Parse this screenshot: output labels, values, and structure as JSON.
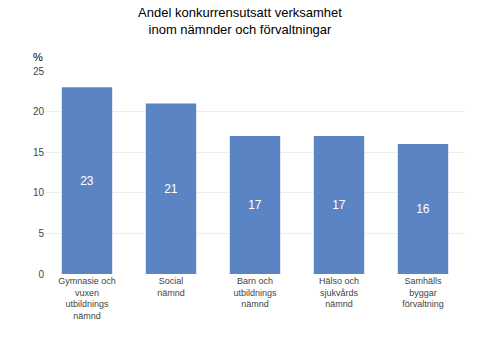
{
  "chart_data": {
    "type": "bar",
    "title": "Andel konkurrensutsatt verksamhet\ninom nämnder och förvaltningar",
    "categories": [
      "Gymnasie och\nvuxen\nutbildnings\nnämnd",
      "Social\nnämnd",
      "Barn och\nutbildnings\nnämnd",
      "Hälso och\nsjukvårds\nnämnd",
      "Samhälls\nbyggar\nförvaltning"
    ],
    "values": [
      23,
      21,
      17,
      17,
      16
    ],
    "color": "#5b84c4",
    "ylabel": "%",
    "ylim": [
      0,
      25
    ],
    "yticks": [
      0,
      5,
      10,
      15,
      20,
      25
    ],
    "grid": true,
    "data_labels": true
  }
}
